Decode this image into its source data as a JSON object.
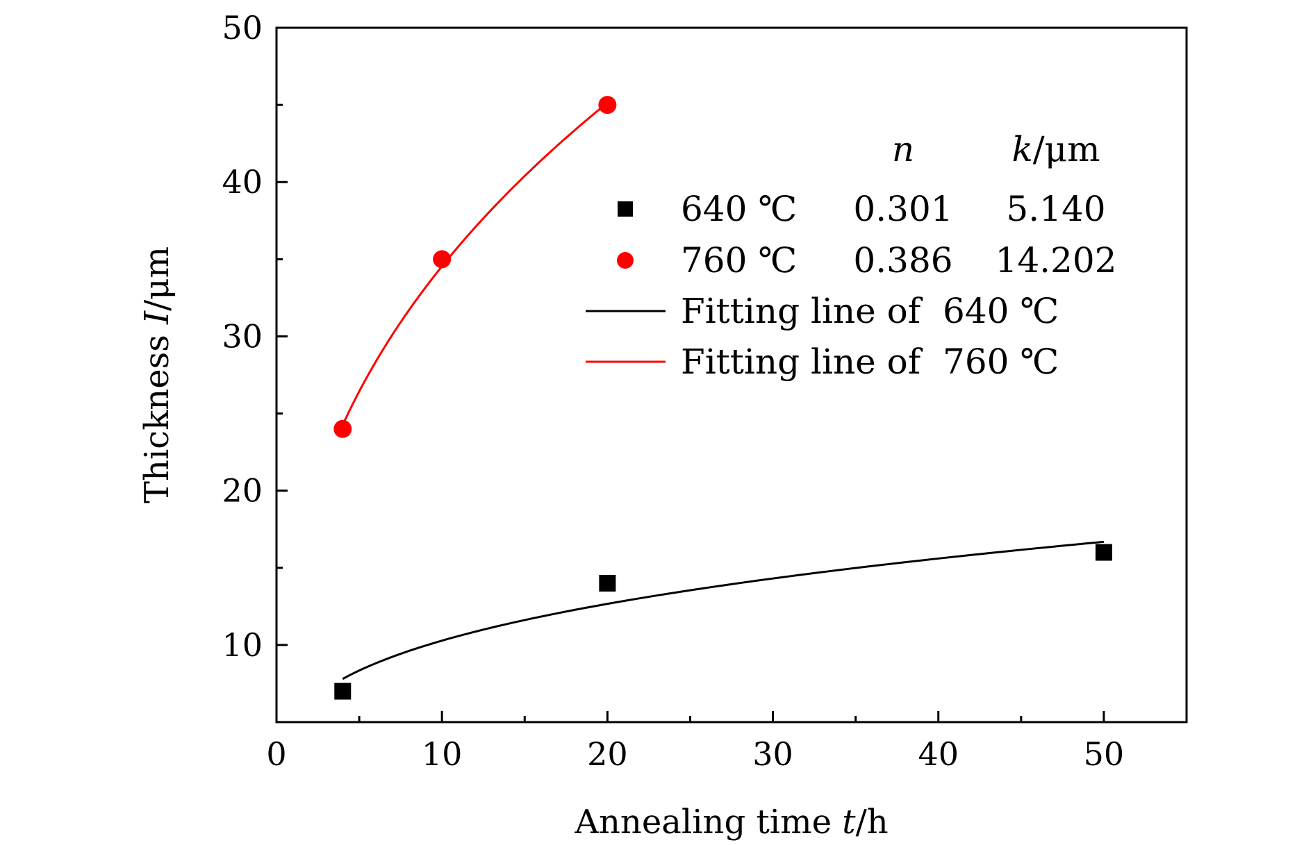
{
  "chart_data": {
    "type": "scatter",
    "xlabel": {
      "prefix": "Annealing time ",
      "var": "t",
      "unit": "/h"
    },
    "ylabel": {
      "prefix": "Thickness ",
      "var": "I",
      "unit": "/μm"
    },
    "xlim": [
      0,
      55
    ],
    "ylim": [
      5,
      50
    ],
    "xticks": [
      0,
      10,
      20,
      30,
      40,
      50
    ],
    "yticks": [
      10,
      20,
      30,
      40,
      50
    ],
    "series": [
      {
        "name": "640 ℃",
        "marker": "square",
        "color": "#000000",
        "x": [
          4,
          20,
          50
        ],
        "y": [
          7,
          14,
          16
        ],
        "n": "0.301",
        "k": "5.140"
      },
      {
        "name": "760 ℃",
        "marker": "circle",
        "color": "#ff0000",
        "x": [
          4,
          10,
          20
        ],
        "y": [
          24,
          35,
          45
        ],
        "n": "0.386",
        "k": "14.202"
      }
    ],
    "fits": [
      {
        "name": "Fitting line of  640 ℃",
        "color": "#000000",
        "k": 5.14,
        "n": 0.301,
        "x_range": [
          4,
          50
        ]
      },
      {
        "name": "Fitting line of  760 ℃",
        "color": "#ff0000",
        "k": 14.202,
        "n": 0.386,
        "x_range": [
          4,
          20
        ]
      }
    ],
    "legend": {
      "position": "upper-right",
      "header_n": "n",
      "header_k": "k",
      "header_k_unit": "/μm"
    }
  }
}
